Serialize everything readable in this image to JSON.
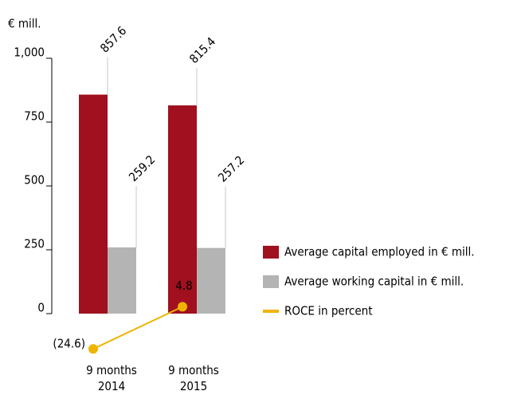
{
  "chart_data": {
    "type": "bar",
    "y_label": "€ mill.",
    "categories": [
      "9 months 2014",
      "9 months 2015"
    ],
    "series": [
      {
        "name": "Average capital employed in € mill.",
        "color": "#a0101e",
        "label_color": "#000000",
        "values": [
          857.6,
          815.4
        ]
      },
      {
        "name": "Average working capital in € mill.",
        "color": "#b4b4b4",
        "label_color": "#b4b4b4",
        "values": [
          259.2,
          257.2
        ]
      },
      {
        "name": "ROCE in percent",
        "type": "line",
        "axis": "y2",
        "color": "#f0b400",
        "values": [
          -24.6,
          4.8
        ],
        "value_labels": [
          "(24.6)",
          "4.8"
        ]
      }
    ],
    "ylim": [
      0,
      1000
    ],
    "yticks": [
      0,
      250,
      500,
      750,
      {
        "value": 1000,
        "label": "1,000"
      }
    ],
    "y2lim": [
      0,
      178
    ]
  }
}
